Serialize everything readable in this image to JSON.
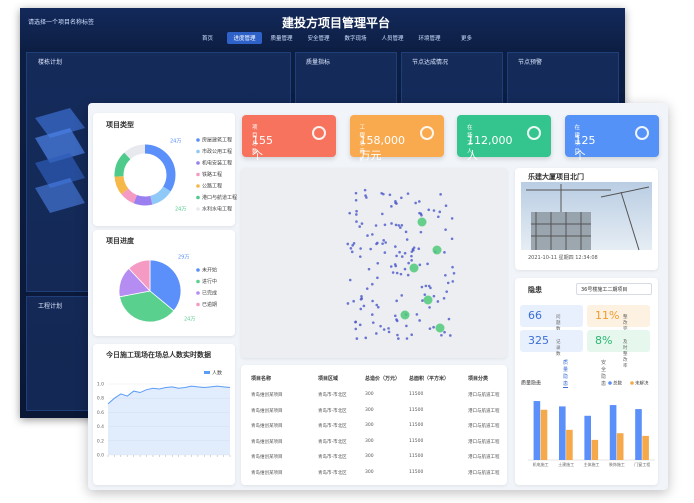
{
  "back_dashboard": {
    "title": "建投方项目管理平台",
    "project_select": "请选择一个项目名称标签",
    "nav": [
      "首页",
      "进度管理",
      "质量管理",
      "安全管理",
      "数字现场",
      "人员管理",
      "环境管理",
      "更多"
    ],
    "panels": [
      "楼栋计划",
      "质量指标",
      "节点达成情况",
      "节点预警",
      "工程计划"
    ]
  },
  "stats": [
    {
      "label": "项目总数",
      "value": "155个",
      "color": "#f7735e"
    },
    {
      "label": "工程总造价",
      "value": "158,000万元",
      "color": "#f9a94e"
    },
    {
      "label": "在场工人",
      "value": "112,000人",
      "color": "#34c48e"
    },
    {
      "label": "在建项目",
      "value": "125个",
      "color": "#5592f7"
    }
  ],
  "project_types": {
    "title": "项目类型",
    "items": [
      "房屋建筑工程",
      "市政公用工程",
      "机电安装工程",
      "铁路工程",
      "公路工程",
      "港口与航道工程",
      "水利水电工程"
    ],
    "values": [
      34,
      12,
      10,
      8,
      10,
      14,
      12
    ],
    "colors": [
      "#5b8ff9",
      "#8fc9f7",
      "#9a7ff0",
      "#f59ac3",
      "#f7b84a",
      "#4ecb8a",
      "#e7e9ef"
    ],
    "callouts": [
      "24万",
      "24万"
    ]
  },
  "project_progress": {
    "title": "项目进度",
    "items": [
      "未开始",
      "进行中",
      "已完成",
      "已逾期"
    ],
    "values": [
      36,
      36,
      16,
      12
    ],
    "colors": [
      "#5b8ff9",
      "#5ad08f",
      "#b48cf2",
      "#f59ac3"
    ],
    "callouts": [
      "29万",
      "24万"
    ]
  },
  "workers_chart": {
    "title": "今日施工现场在场总人数实时数据",
    "series_name": "人数",
    "color": "#5b9cf6",
    "values": [
      0.72,
      0.8,
      0.86,
      0.83,
      0.9,
      0.88,
      0.92,
      0.94,
      0.93,
      0.95,
      0.96,
      0.94,
      0.95,
      0.97,
      0.96,
      0.95,
      0.96,
      0.97,
      0.96,
      0.95
    ],
    "ylim": [
      0,
      1.0
    ],
    "yticks": [
      {
        "value": 0,
        "label": "0.0"
      },
      0.2,
      0.4,
      0.6,
      0.8,
      {
        "value": 1,
        "label": "1.0"
      }
    ]
  },
  "table": {
    "headers": [
      "项目名称",
      "项目区域",
      "总造价（万元）",
      "总面积（平方米）",
      "项目分类"
    ],
    "rows": [
      [
        "青岛维创某项目",
        "青岛市-市北区",
        "300",
        "11500",
        "港口与航道工程"
      ],
      [
        "青岛维创某项目",
        "青岛市-市北区",
        "300",
        "11500",
        "港口与航道工程"
      ],
      [
        "青岛维创某项目",
        "青岛市-市北区",
        "300",
        "11500",
        "港口与航道工程"
      ],
      [
        "青岛维创某项目",
        "青岛市-市北区",
        "300",
        "11500",
        "港口与航道工程"
      ],
      [
        "青岛维创某项目",
        "青岛市-市北区",
        "300",
        "11500",
        "港口与航道工程"
      ],
      [
        "青岛维创某项目",
        "青岛市-市北区",
        "300",
        "11500",
        "港口与航道工程"
      ]
    ]
  },
  "site_photo": {
    "title": "乐建大厦项目北门",
    "timestamp": "2021-10-11 星期四 12:34:08"
  },
  "hazards": {
    "title": "隐患",
    "project": "36号楼施工二期项目",
    "metrics": [
      {
        "value": "66",
        "label": "问题数"
      },
      {
        "value": "11%",
        "label": "整改完成率"
      },
      {
        "value": "325",
        "label": "记录数"
      },
      {
        "value": "8%",
        "label": "及时整改率"
      }
    ],
    "tabs": [
      "质量隐患",
      "安全隐患"
    ],
    "chart": {
      "title": "质量隐患",
      "categories": [
        "机电施工",
        "土建施工",
        "主体施工",
        "装饰施工",
        "门窗工程"
      ],
      "series": [
        {
          "name": "总数",
          "color": "#5b8ff9",
          "values": [
            88,
            80,
            66,
            82,
            76
          ]
        },
        {
          "name": "未解决",
          "color": "#f6a94a",
          "values": [
            75,
            45,
            30,
            40,
            36
          ]
        }
      ],
      "ylim": [
        0,
        100
      ]
    }
  }
}
